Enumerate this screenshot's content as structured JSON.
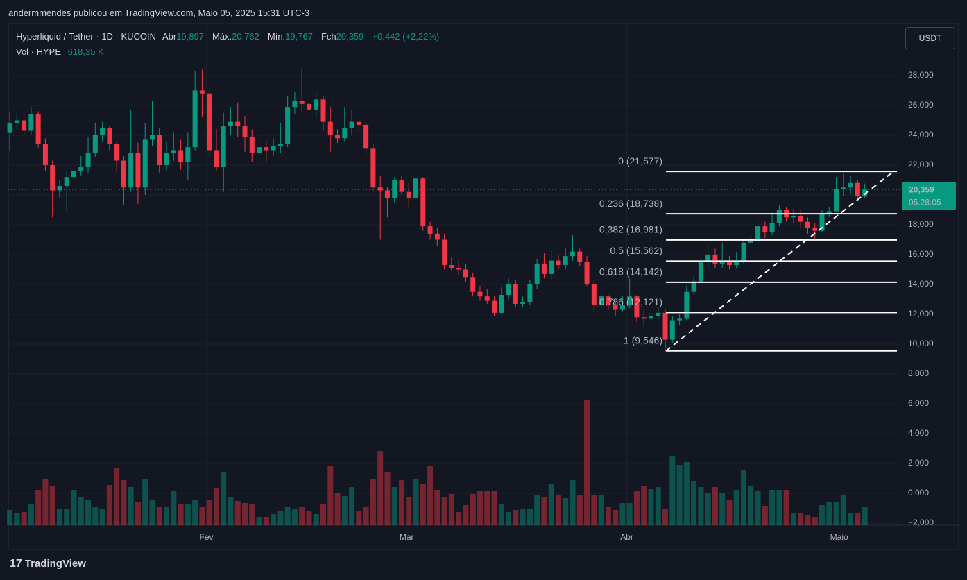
{
  "byline": "andermmendes publicou em TradingView.com, Maio 05, 2025 15:31 UTC-3",
  "logo": "TradingView",
  "currency_button": "USDT",
  "chart_data": {
    "type": "candlestick",
    "title": "Hyperliquid / Tether · 1D · KUCOIN",
    "legend_fields": [
      "Abr",
      "Máx.",
      "Mín.",
      "Fch"
    ],
    "legend_values": [
      "19,897",
      "20,762",
      "19,767",
      "20,359"
    ],
    "change_label": "+0,442 (+2,22%)",
    "volume_title": "Vol · HYPE",
    "volume_label": "618,35 K",
    "price_label": "20,359",
    "countdown": "05:28:05",
    "up_color": "#089981",
    "down_color": "#f23645",
    "grid": true,
    "xlim": [
      -0.2,
      125.0
    ],
    "xticks": [
      {
        "value": 27.6,
        "label": "Fev"
      },
      {
        "value": 55.7,
        "label": "Mar"
      },
      {
        "value": 86.6,
        "label": "Abr"
      },
      {
        "value": 116.4,
        "label": "Maio"
      }
    ],
    "ylim": [
      -2.14,
      31.44
    ],
    "yticks": [
      {
        "value": -2,
        "label": "−2,000"
      },
      {
        "value": 0,
        "label": "0,000"
      },
      {
        "value": 2,
        "label": "2,000"
      },
      {
        "value": 4,
        "label": "4,000"
      },
      {
        "value": 6,
        "label": "6,000"
      },
      {
        "value": 8,
        "label": "8,000"
      },
      {
        "value": 10,
        "label": "10,000"
      },
      {
        "value": 12,
        "label": "12,000"
      },
      {
        "value": 14,
        "label": "14,000"
      },
      {
        "value": 16,
        "label": "16,000"
      },
      {
        "value": 18,
        "label": "18,000"
      },
      {
        "value": 20,
        "label": "20,000"
      },
      {
        "value": 22,
        "label": "22,000"
      },
      {
        "value": 24,
        "label": "24,000"
      },
      {
        "value": 26,
        "label": "26,000"
      },
      {
        "value": 28,
        "label": "28,000"
      }
    ],
    "open": [
      24.2,
      24.8,
      25.0,
      24.3,
      25.4,
      23.4,
      22.0,
      20.3,
      20.6,
      21.2,
      21.6,
      21.9,
      22.8,
      24.0,
      24.5,
      23.4,
      22.3,
      20.5,
      22.8,
      20.5,
      23.7,
      24.0,
      22.0,
      22.8,
      23.0,
      22.2,
      23.2,
      27.0,
      26.8,
      23.0,
      21.9,
      24.6,
      24.9,
      24.6,
      23.9,
      22.8,
      23.2,
      23.0,
      23.3,
      23.4,
      25.9,
      26.3,
      26.1,
      25.7,
      26.4,
      24.9,
      24.0,
      23.8,
      24.5,
      24.9,
      24.7,
      23.1,
      20.5,
      20.3,
      19.8,
      21.0,
      20.2,
      19.8,
      21.1,
      17.9,
      17.4,
      17.0,
      15.3,
      15.1,
      15.0,
      14.5,
      13.5,
      13.2,
      12.9,
      12.1,
      13.3,
      14.0,
      12.7,
      12.8,
      14.0,
      15.4,
      14.7,
      15.6,
      15.3,
      15.9,
      16.2,
      15.5,
      14.0,
      12.6,
      13.2,
      12.6,
      12.3,
      12.6,
      13.2,
      11.8,
      11.7,
      11.9,
      12.1,
      10.3,
      11.6,
      11.7,
      13.5,
      14.2,
      15.5,
      16.0,
      15.4,
      15.6,
      15.3,
      15.6,
      16.8,
      16.9,
      17.9,
      17.5,
      18.1,
      19.0,
      18.5,
      18.6,
      18.2,
      17.8,
      17.6,
      18.7,
      18.9,
      20.4,
      20.5,
      20.8,
      19.897
    ],
    "high": [
      25.6,
      25.4,
      25.5,
      25.9,
      25.6,
      23.8,
      22.3,
      21.0,
      21.6,
      22.3,
      22.6,
      23.9,
      24.8,
      24.9,
      24.6,
      23.6,
      22.6,
      25.7,
      23.5,
      24.8,
      26.3,
      24.5,
      23.6,
      24.2,
      23.7,
      24.2,
      28.3,
      28.4,
      27.2,
      24.4,
      25.5,
      25.9,
      26.2,
      25.3,
      24.4,
      24.0,
      23.6,
      23.8,
      24.8,
      26.6,
      26.9,
      28.5,
      26.8,
      26.9,
      26.6,
      25.9,
      24.4,
      25.9,
      25.7,
      24.8,
      24.8,
      23.4,
      21.3,
      20.5,
      21.2,
      21.3,
      20.8,
      21.4,
      21.2,
      18.2,
      17.8,
      17.4,
      15.8,
      15.6,
      15.4,
      14.8,
      13.9,
      13.7,
      13.2,
      13.8,
      14.4,
      14.3,
      13.2,
      14.3,
      15.7,
      16.1,
      16.3,
      16.0,
      16.4,
      17.3,
      16.4,
      15.9,
      14.3,
      13.8,
      13.3,
      12.8,
      13.2,
      14.4,
      13.3,
      12.4,
      12.3,
      12.5,
      12.3,
      11.9,
      12.0,
      13.9,
      14.5,
      15.8,
      16.7,
      16.4,
      16.8,
      15.9,
      16.2,
      17.0,
      17.3,
      18.5,
      18.2,
      18.8,
      19.3,
      19.2,
      19.0,
      19.0,
      18.5,
      18.1,
      19.0,
      19.2,
      21.2,
      21.4,
      21.3,
      21.0,
      20.762
    ],
    "low": [
      23.0,
      24.4,
      24.0,
      24.0,
      23.1,
      21.6,
      18.5,
      19.8,
      18.9,
      21.0,
      21.3,
      21.5,
      22.5,
      23.6,
      23.0,
      21.6,
      19.3,
      20.2,
      19.4,
      20.0,
      23.3,
      21.5,
      21.6,
      22.3,
      21.7,
      21.0,
      23.0,
      25.2,
      22.5,
      21.6,
      20.2,
      24.0,
      23.9,
      22.9,
      22.2,
      22.2,
      22.2,
      22.6,
      22.8,
      23.2,
      25.4,
      25.6,
      25.1,
      25.2,
      24.3,
      22.9,
      23.5,
      23.6,
      24.0,
      24.2,
      22.7,
      20.2,
      17.0,
      18.5,
      19.5,
      20.0,
      19.2,
      19.5,
      17.6,
      17.0,
      16.6,
      15.0,
      14.9,
      14.6,
      14.2,
      13.2,
      12.9,
      12.7,
      11.9,
      12.0,
      13.0,
      12.5,
      12.5,
      12.6,
      13.7,
      14.4,
      14.3,
      15.0,
      15.0,
      15.6,
      15.2,
      13.9,
      12.2,
      12.4,
      12.3,
      11.9,
      12.2,
      12.4,
      11.5,
      11.2,
      11.2,
      11.6,
      9.5,
      10.1,
      11.3,
      11.6,
      13.3,
      14.0,
      15.0,
      15.1,
      15.1,
      15.0,
      15.1,
      15.4,
      16.7,
      16.7,
      17.1,
      17.3,
      17.9,
      18.2,
      18.1,
      17.8,
      17.4,
      17.0,
      17.5,
      18.5,
      18.9,
      19.9,
      20.1,
      19.8,
      19.767
    ],
    "close": [
      24.8,
      25.0,
      24.3,
      25.4,
      23.4,
      22.0,
      20.3,
      20.6,
      21.2,
      21.6,
      21.9,
      22.8,
      24.0,
      24.5,
      23.4,
      22.3,
      20.5,
      22.8,
      20.5,
      23.7,
      24.0,
      22.0,
      22.8,
      23.0,
      22.2,
      23.2,
      27.0,
      26.8,
      23.0,
      21.9,
      24.6,
      24.9,
      24.6,
      23.9,
      22.8,
      23.2,
      23.0,
      23.3,
      23.4,
      25.9,
      26.3,
      26.1,
      25.7,
      26.4,
      24.9,
      24.0,
      23.8,
      24.5,
      24.9,
      24.7,
      23.1,
      20.5,
      20.3,
      19.8,
      21.0,
      20.2,
      19.8,
      21.1,
      17.9,
      17.4,
      17.0,
      15.3,
      15.1,
      15.0,
      14.5,
      13.5,
      13.2,
      12.9,
      12.1,
      13.3,
      14.0,
      12.7,
      12.8,
      14.0,
      15.4,
      14.7,
      15.6,
      15.3,
      15.9,
      16.2,
      15.5,
      14.0,
      12.6,
      13.2,
      12.6,
      12.3,
      12.6,
      13.2,
      11.8,
      11.7,
      11.9,
      12.1,
      10.3,
      11.6,
      11.7,
      13.5,
      14.2,
      15.5,
      16.0,
      15.4,
      15.6,
      15.3,
      15.6,
      16.8,
      16.9,
      17.9,
      17.5,
      18.1,
      19.0,
      18.5,
      18.6,
      18.2,
      17.8,
      17.6,
      18.7,
      18.9,
      20.4,
      20.5,
      20.8,
      19.917,
      20.359
    ],
    "volume": [
      524,
      405,
      452,
      714,
      1214,
      1571,
      1357,
      547,
      547,
      1214,
      976,
      881,
      619,
      571,
      1380,
      1975,
      1547,
      1309,
      809,
      1571,
      857,
      619,
      619,
      1166,
      714,
      714,
      881,
      619,
      881,
      1261,
      1809,
      952,
      833,
      762,
      714,
      286,
      286,
      381,
      500,
      619,
      547,
      619,
      500,
      381,
      738,
      2023,
      1095,
      1000,
      1309,
      476,
      619,
      1595,
      2547,
      1809,
      1309,
      1547,
      976,
      1595,
      1428,
      2047,
      1214,
      976,
      1071,
      452,
      690,
      1071,
      1190,
      1190,
      1190,
      714,
      452,
      524,
      571,
      571,
      1047,
      976,
      1428,
      1047,
      928,
      1547,
      1047,
      4308,
      1047,
      1023,
      619,
      524,
      762,
      762,
      1190,
      1333,
      1238,
      1309,
      547,
      2380,
      2071,
      2166,
      1523,
      1309,
      1095,
      1309,
      1095,
      881,
      1214,
      1904,
      1357,
      1190,
      643,
      1214,
      1214,
      1214,
      428,
      428,
      357,
      286,
      690,
      785,
      785,
      1023,
      405,
      428,
      618.35
    ],
    "fib_levels": [
      {
        "value": 21.577,
        "label": "0 (21,577)"
      },
      {
        "value": 18.738,
        "label": "0,236 (18,738)"
      },
      {
        "value": 16.981,
        "label": "0,382 (16,981)"
      },
      {
        "value": 15.562,
        "label": "0,5 (15,562)"
      },
      {
        "value": 14.142,
        "label": "0,618 (14,142)"
      },
      {
        "value": 12.121,
        "label": "0,786 (12,121)"
      },
      {
        "value": 9.546,
        "label": "1 (9,546)"
      }
    ]
  }
}
